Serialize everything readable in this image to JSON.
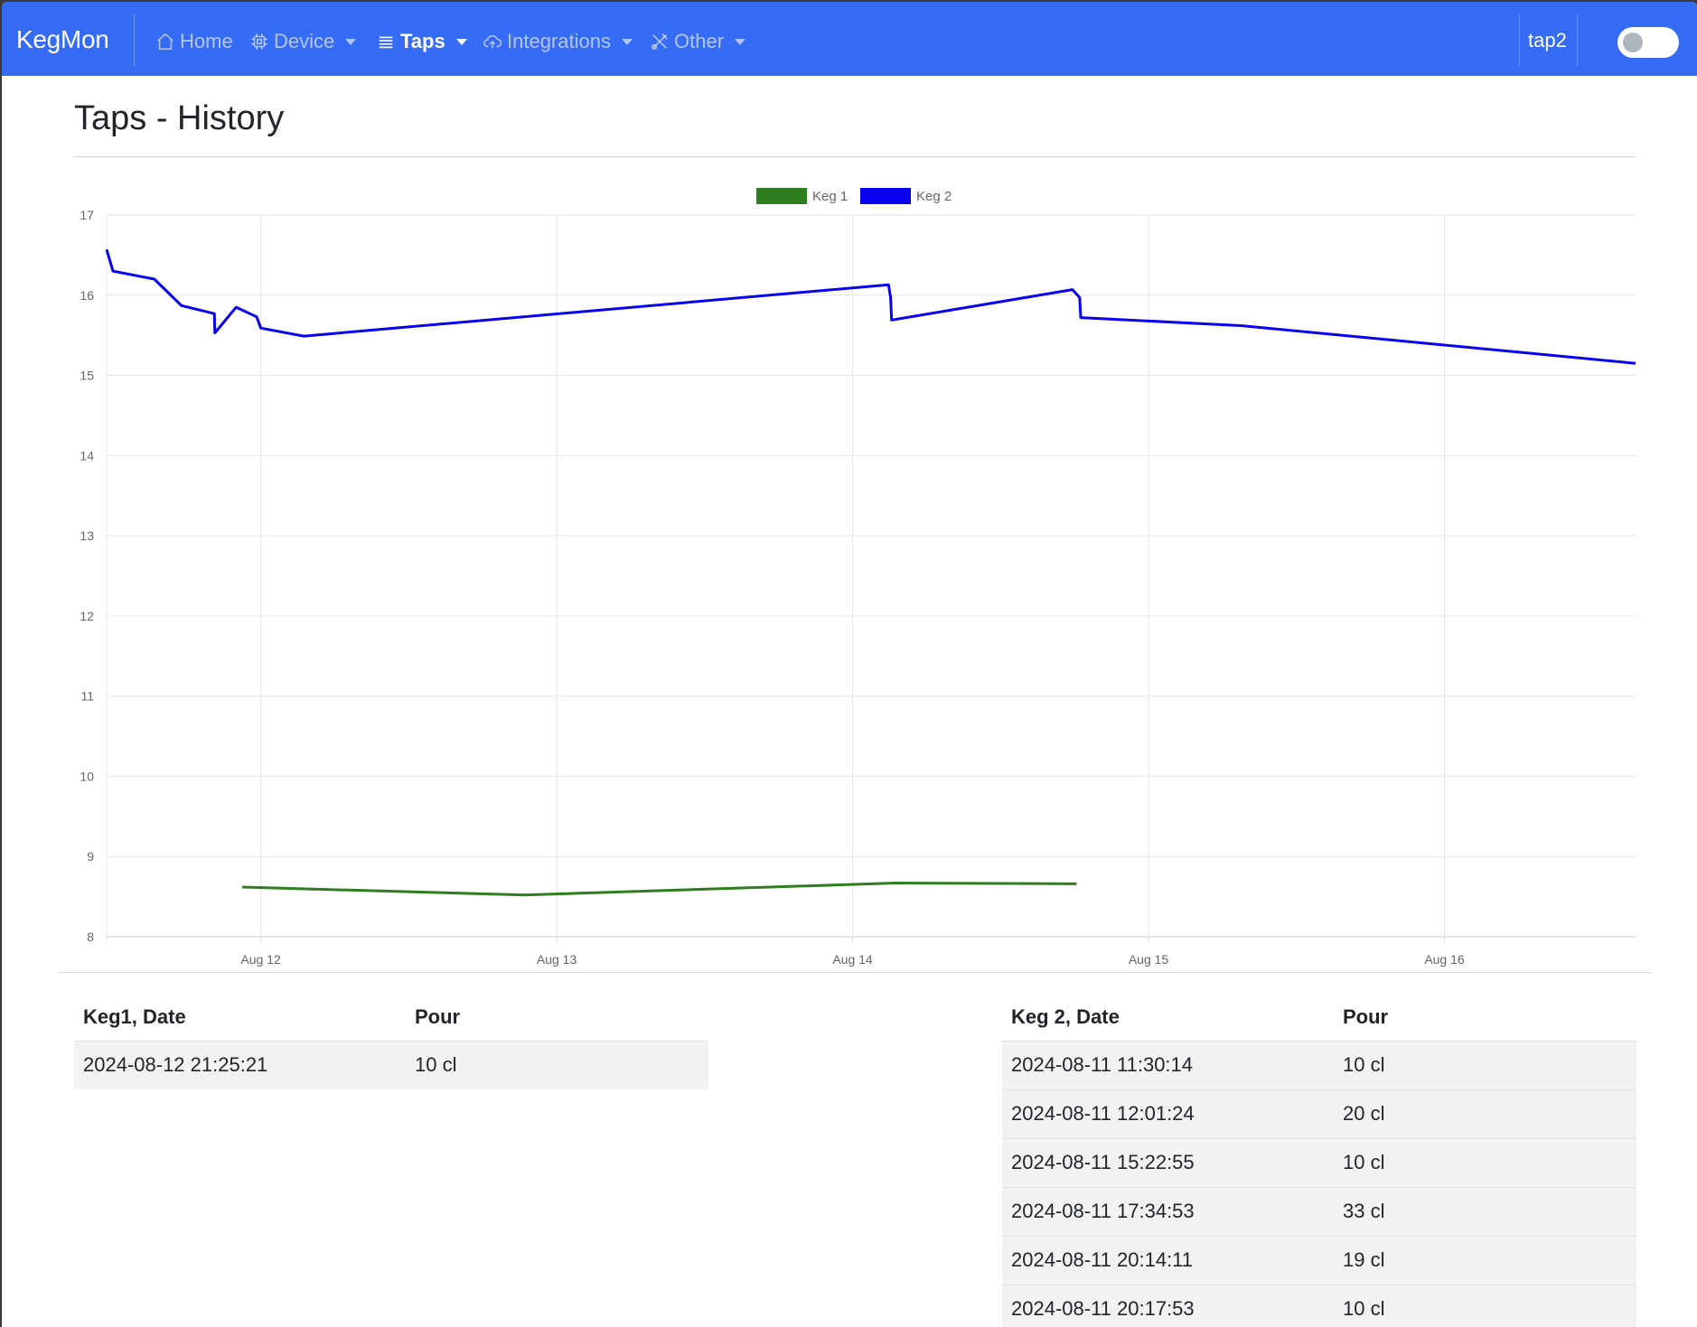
{
  "nav": {
    "brand": "KegMon",
    "items": [
      {
        "label": "Home",
        "icon": "house-icon"
      },
      {
        "label": "Device",
        "icon": "chip-icon"
      },
      {
        "label": "Taps",
        "icon": "list-icon"
      },
      {
        "label": "Integrations",
        "icon": "cloud-upload-icon"
      },
      {
        "label": "Other",
        "icon": "tools-icon"
      }
    ],
    "device_name": "tap2",
    "toggle_on": false
  },
  "page": {
    "title": "Taps - History"
  },
  "colors": {
    "navbar": "#356bf5",
    "keg1": "#2e7d1f",
    "keg2": "#0a00f0"
  },
  "chart_data": {
    "type": "line",
    "title": "",
    "xlabel": "",
    "ylabel": "",
    "ylim": [
      8,
      17
    ],
    "yticks": [
      "8",
      "9",
      "10",
      "11",
      "12",
      "13",
      "14",
      "15",
      "16",
      "17"
    ],
    "xlim": [
      "2024-08-11 11:30",
      "2024-08-16 15:30"
    ],
    "xticks": [
      "Aug 12",
      "Aug 13",
      "Aug 14",
      "Aug 15",
      "Aug 16"
    ],
    "grid": true,
    "legend_position": "top-center",
    "series": [
      {
        "name": "Keg 1",
        "color": "#2e7d1f",
        "x": [
          "2024-08-11 22:30",
          "2024-08-12 21:25",
          "2024-08-14 03:30",
          "2024-08-14 18:10"
        ],
        "y": [
          8.62,
          8.52,
          8.67,
          8.66
        ]
      },
      {
        "name": "Keg 2",
        "color": "#0a00f0",
        "x": [
          "2024-08-11 11:30",
          "2024-08-11 12:01",
          "2024-08-11 15:22",
          "2024-08-11 17:34",
          "2024-08-11 20:14",
          "2024-08-11 20:17",
          "2024-08-11 22:00",
          "2024-08-11 23:40",
          "2024-08-12 00:00",
          "2024-08-12 03:30",
          "2024-08-14 02:55",
          "2024-08-14 03:05",
          "2024-08-14 03:10",
          "2024-08-14 17:50",
          "2024-08-14 18:25",
          "2024-08-14 18:30",
          "2024-08-15 07:30",
          "2024-08-16 15:30"
        ],
        "y": [
          16.57,
          16.3,
          16.2,
          15.87,
          15.77,
          15.53,
          15.85,
          15.73,
          15.59,
          15.49,
          16.13,
          15.97,
          15.69,
          16.07,
          15.97,
          15.72,
          15.62,
          15.15
        ]
      }
    ]
  },
  "tables": {
    "keg1": {
      "headers": [
        "Keg1, Date",
        "Pour"
      ],
      "rows": [
        [
          "2024-08-12 21:25:21",
          "10 cl"
        ]
      ]
    },
    "keg2": {
      "headers": [
        "Keg 2, Date",
        "Pour"
      ],
      "rows": [
        [
          "2024-08-11 11:30:14",
          "10 cl"
        ],
        [
          "2024-08-11 12:01:24",
          "20 cl"
        ],
        [
          "2024-08-11 15:22:55",
          "10 cl"
        ],
        [
          "2024-08-11 17:34:53",
          "33 cl"
        ],
        [
          "2024-08-11 20:14:11",
          "19 cl"
        ],
        [
          "2024-08-11 20:17:53",
          "10 cl"
        ]
      ]
    }
  }
}
